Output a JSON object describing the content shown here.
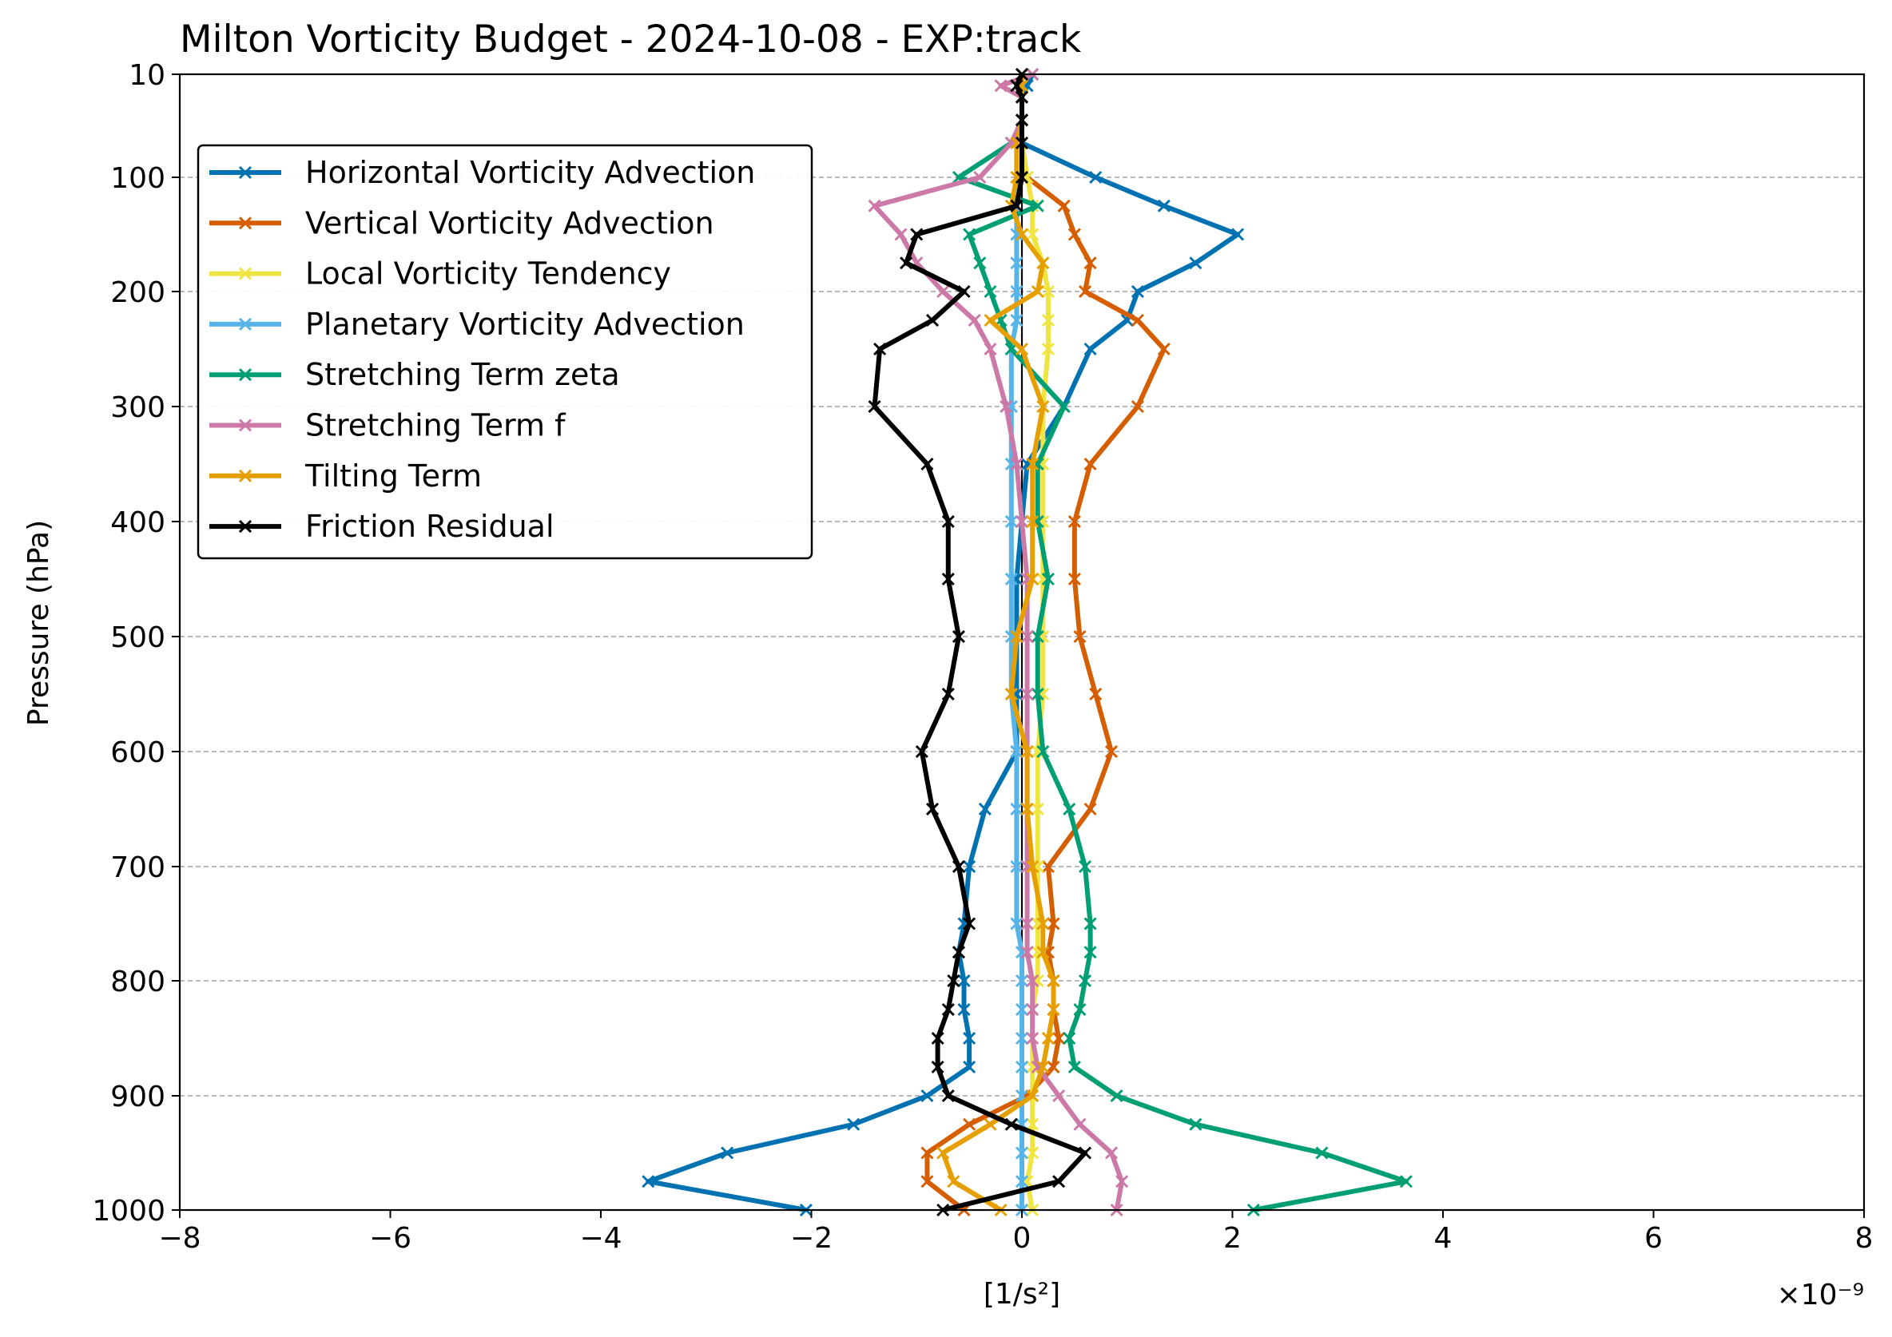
{
  "chart_data": {
    "type": "line",
    "title": "Milton Vorticity Budget - 2024-10-08 - EXP:track",
    "xlabel": "[1/s²]",
    "ylabel": "Pressure (hPa)",
    "x_scale_label": "×10⁻⁹",
    "xlim": [
      -8,
      8
    ],
    "ylim": [
      1000,
      10
    ],
    "y_inverted": true,
    "xticks": [
      -8,
      -6,
      -4,
      -2,
      0,
      2,
      4,
      6,
      8
    ],
    "xtick_labels": [
      "−8",
      "−6",
      "−4",
      "−2",
      "0",
      "2",
      "4",
      "6",
      "8"
    ],
    "yticks": [
      10,
      100,
      200,
      300,
      400,
      500,
      600,
      700,
      800,
      900,
      1000
    ],
    "ytick_labels": [
      "10",
      "100",
      "200",
      "300",
      "400",
      "500",
      "600",
      "700",
      "800",
      "900",
      "1000"
    ],
    "grid": "horizontal dashed",
    "legend_position": "upper-left",
    "levels": [
      10,
      20,
      30,
      50,
      70,
      100,
      125,
      150,
      175,
      200,
      225,
      250,
      300,
      350,
      400,
      450,
      500,
      550,
      600,
      650,
      700,
      750,
      775,
      800,
      825,
      850,
      875,
      900,
      925,
      950,
      975,
      1000
    ],
    "series": [
      {
        "name": "Horizontal Vorticity Advection",
        "color": "#0072B2",
        "values": [
          0.1,
          0.05,
          0.0,
          0.0,
          0.0,
          0.7,
          1.35,
          2.05,
          1.65,
          1.1,
          1.0,
          0.65,
          0.4,
          0.05,
          0.0,
          -0.05,
          -0.05,
          -0.05,
          -0.05,
          -0.35,
          -0.5,
          -0.55,
          -0.6,
          -0.55,
          -0.55,
          -0.5,
          -0.5,
          -0.9,
          -1.6,
          -2.8,
          -3.55,
          -2.05
        ]
      },
      {
        "name": "Vertical Vorticity Advection",
        "color": "#D55E00",
        "values": [
          0.0,
          0.0,
          0.0,
          0.0,
          0.0,
          0.05,
          0.4,
          0.5,
          0.65,
          0.6,
          1.1,
          1.35,
          1.1,
          0.65,
          0.5,
          0.5,
          0.55,
          0.7,
          0.85,
          0.65,
          0.25,
          0.3,
          0.25,
          0.3,
          0.3,
          0.35,
          0.3,
          0.05,
          -0.5,
          -0.9,
          -0.9,
          -0.55
        ]
      },
      {
        "name": "Local Vorticity Tendency",
        "color": "#F0E442",
        "values": [
          0.0,
          0.0,
          0.0,
          0.0,
          0.0,
          0.05,
          0.1,
          0.1,
          0.2,
          0.25,
          0.25,
          0.25,
          0.2,
          0.2,
          0.2,
          0.2,
          0.2,
          0.2,
          0.15,
          0.15,
          0.15,
          0.15,
          0.15,
          0.15,
          0.1,
          0.1,
          0.1,
          0.1,
          0.1,
          0.1,
          0.05,
          0.1
        ]
      },
      {
        "name": "Planetary Vorticity Advection",
        "color": "#56B4E9",
        "values": [
          0.0,
          0.0,
          0.0,
          0.0,
          -0.05,
          -0.05,
          -0.05,
          -0.05,
          -0.05,
          -0.05,
          -0.05,
          -0.1,
          -0.1,
          -0.1,
          -0.1,
          -0.1,
          -0.1,
          -0.1,
          -0.05,
          -0.05,
          -0.05,
          -0.05,
          0.0,
          0.0,
          0.0,
          0.0,
          0.0,
          0.0,
          0.0,
          0.0,
          0.0,
          0.0
        ]
      },
      {
        "name": "Stretching Term zeta",
        "color": "#009E73",
        "values": [
          0.0,
          0.0,
          0.0,
          0.0,
          -0.1,
          -0.6,
          0.15,
          -0.5,
          -0.4,
          -0.3,
          -0.2,
          -0.1,
          0.4,
          0.15,
          0.15,
          0.25,
          0.15,
          0.15,
          0.2,
          0.45,
          0.6,
          0.65,
          0.65,
          0.6,
          0.55,
          0.45,
          0.5,
          0.9,
          1.65,
          2.85,
          3.65,
          2.2
        ]
      },
      {
        "name": "Stretching Term f",
        "color": "#CC79A7",
        "values": [
          0.1,
          -0.2,
          0.0,
          0.0,
          -0.1,
          -0.4,
          -1.4,
          -1.15,
          -1.0,
          -0.75,
          -0.45,
          -0.3,
          -0.15,
          -0.05,
          0.0,
          0.05,
          0.05,
          0.05,
          0.05,
          0.05,
          0.05,
          0.05,
          0.05,
          0.1,
          0.1,
          0.1,
          0.15,
          0.35,
          0.55,
          0.85,
          0.95,
          0.9
        ]
      },
      {
        "name": "Tilting Term",
        "color": "#E69F00",
        "values": [
          0.0,
          0.0,
          0.0,
          0.0,
          -0.05,
          -0.05,
          -0.1,
          0.0,
          0.2,
          0.15,
          -0.3,
          0.0,
          0.2,
          0.1,
          0.1,
          0.1,
          -0.05,
          -0.1,
          0.05,
          0.05,
          0.1,
          0.2,
          0.2,
          0.3,
          0.3,
          0.25,
          0.2,
          0.1,
          -0.3,
          -0.75,
          -0.65,
          -0.2
        ]
      },
      {
        "name": "Friction Residual",
        "color": "#000000",
        "values": [
          0.0,
          -0.05,
          0.0,
          0.0,
          0.0,
          0.0,
          -0.05,
          -1.0,
          -1.1,
          -0.55,
          -0.85,
          -1.35,
          -1.4,
          -0.9,
          -0.7,
          -0.7,
          -0.6,
          -0.7,
          -0.95,
          -0.85,
          -0.6,
          -0.5,
          -0.6,
          -0.65,
          -0.7,
          -0.8,
          -0.8,
          -0.7,
          -0.1,
          0.6,
          0.35,
          -0.75
        ]
      }
    ]
  }
}
